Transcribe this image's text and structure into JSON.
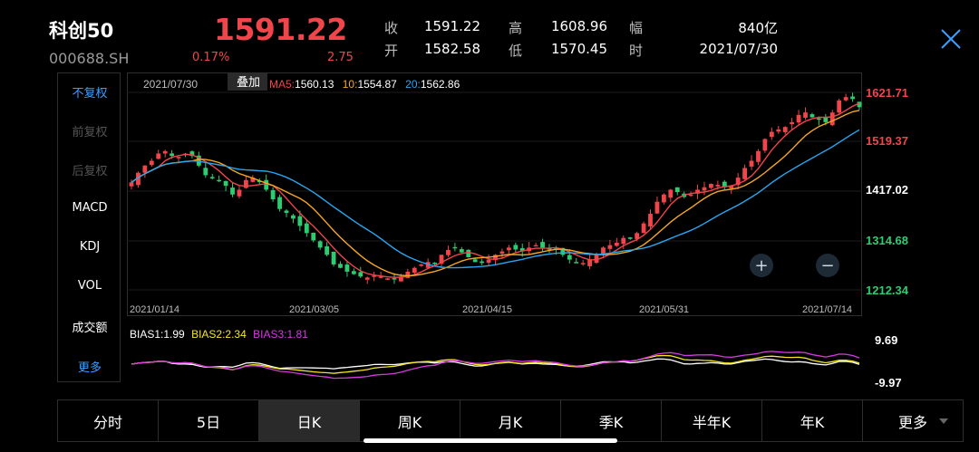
{
  "header": {
    "name": "科创50",
    "code": "000688.SH",
    "price": "1591.22",
    "change_pct": "0.17%",
    "change": "2.75",
    "quote": [
      {
        "label": "收",
        "value": "1591.22"
      },
      {
        "label": "高",
        "value": "1608.96"
      },
      {
        "label": "幅",
        "value": "840亿"
      },
      {
        "label": "开",
        "value": "1582.58"
      },
      {
        "label": "低",
        "value": "1570.45"
      },
      {
        "label": "时",
        "value": "2021/07/30"
      }
    ]
  },
  "left_menu": [
    "不复权",
    "前复权",
    "后复权",
    "MACD",
    "KDJ",
    "VOL",
    "成交额",
    "更多"
  ],
  "chart_info": {
    "date": "2021/07/30",
    "overlay_button": "叠加",
    "ma5_label": "MA5:",
    "ma5_value": "1560.13",
    "ma10_label": "10:",
    "ma10_value": "1554.87",
    "ma20_label": "20:",
    "ma20_value": "1562.86"
  },
  "zoom": {
    "in": "+",
    "out": "−"
  },
  "bias": {
    "b1_label": "BIAS1:",
    "b1_value": "1.99",
    "b2_label": "BIAS2:",
    "b2_value": "2.34",
    "b3_label": "BIAS3:",
    "b3_value": "1.81",
    "top": "9.69",
    "bottom": "-9.97"
  },
  "tabs": [
    "分时",
    "5日",
    "日K",
    "周K",
    "月K",
    "季K",
    "半年K",
    "年K",
    "更多"
  ],
  "colors": {
    "up": "#f0454b",
    "down": "#2ecc71",
    "ma5": "#f0454b",
    "ma10": "#f5a623",
    "ma20": "#29a6f0",
    "bias1": "#ffffff",
    "bias2": "#f5e623",
    "bias3": "#d63ae0",
    "accent": "#3aa0ff"
  },
  "chart_data": {
    "type": "candlestick",
    "x_ticks": [
      "2021/01/14",
      "2021/03/05",
      "2021/04/15",
      "2021/05/31",
      "2021/07/14"
    ],
    "y_ticks": [
      "1621.71",
      "1519.37",
      "1417.02",
      "1314.68",
      "1212.34"
    ],
    "close_path": [
      1435,
      1455,
      1470,
      1480,
      1495,
      1500,
      1490,
      1488,
      1493,
      1490,
      1470,
      1450,
      1445,
      1440,
      1428,
      1410,
      1420,
      1440,
      1445,
      1438,
      1420,
      1400,
      1380,
      1372,
      1360,
      1345,
      1330,
      1315,
      1300,
      1285,
      1265,
      1258,
      1250,
      1245,
      1240,
      1238,
      1242,
      1240,
      1236,
      1235,
      1240,
      1250,
      1258,
      1265,
      1270,
      1268,
      1285,
      1295,
      1300,
      1290,
      1280,
      1270,
      1268,
      1275,
      1285,
      1292,
      1300,
      1296,
      1292,
      1300,
      1305,
      1300,
      1298,
      1296,
      1285,
      1275,
      1270,
      1268,
      1275,
      1285,
      1300,
      1305,
      1310,
      1320,
      1318,
      1330,
      1350,
      1370,
      1395,
      1410,
      1420,
      1415,
      1405,
      1410,
      1420,
      1425,
      1432,
      1430,
      1425,
      1428,
      1445,
      1465,
      1480,
      1500,
      1525,
      1540,
      1545,
      1550,
      1560,
      1575,
      1580,
      1570,
      1565,
      1560,
      1580,
      1605,
      1612,
      1608,
      1591
    ]
  }
}
